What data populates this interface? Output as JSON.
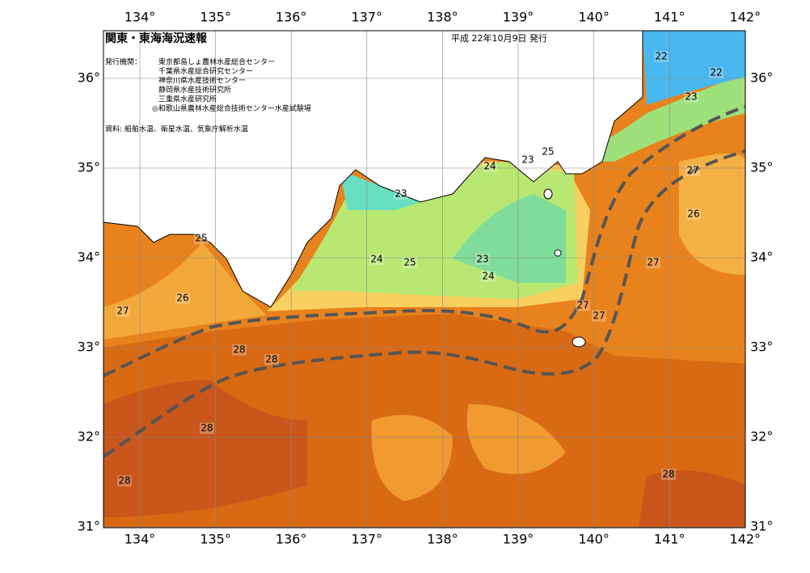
{
  "header": {
    "title": "関東・東海海況速報",
    "date": "平成 22年10月9日 発行"
  },
  "publisher": {
    "label": "発行機関：",
    "agencies": [
      "東京都島しょ農林水産総合センター",
      "千葉県水産総合研究センター",
      "神奈川県水産技術センター",
      "静岡県水産技術研究所",
      "三重県水産研究所",
      "◎和歌山県農林水産総合技術センター水産試験場"
    ]
  },
  "source": "資料: 船舶水温、衛星水温、気象庁解析水温",
  "longitude_labels": [
    "134°",
    "135°",
    "136°",
    "137°",
    "138°",
    "139°",
    "140°",
    "141°",
    "142°"
  ],
  "latitude_labels": [
    "36°",
    "35°",
    "34°",
    "33°",
    "32°",
    "31°"
  ],
  "contour_labels": [
    "22",
    "22",
    "23",
    "25",
    "23",
    "24",
    "27",
    "23",
    "26",
    "25",
    "24",
    "25",
    "23",
    "27",
    "24",
    "26",
    "27",
    "27",
    "27",
    "28",
    "28",
    "28",
    "28",
    "28"
  ]
}
